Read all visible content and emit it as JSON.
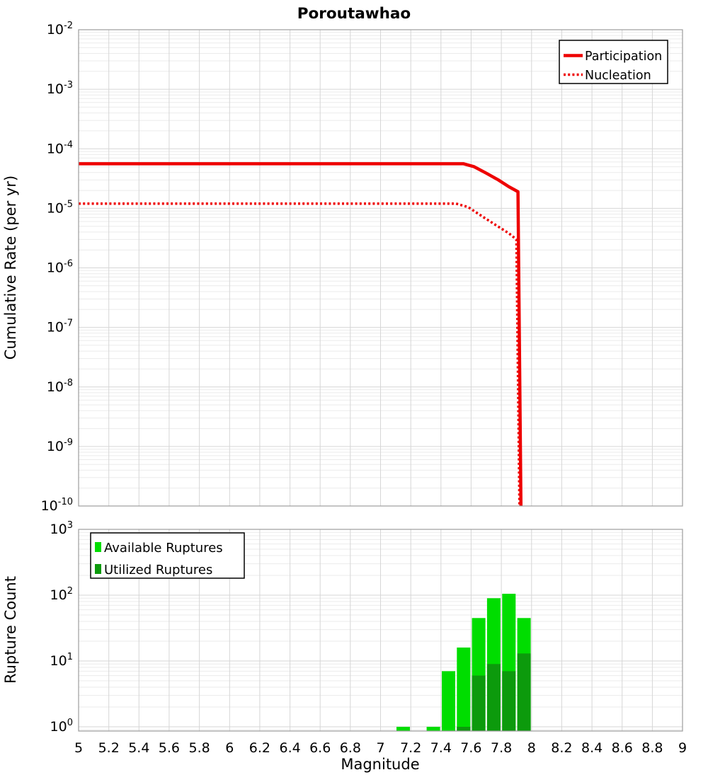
{
  "title": "Poroutawhao",
  "colors": {
    "line_red": "#ee0000",
    "available_green": "#00dd00",
    "utilized_green": "#0c9a0c",
    "grid_major": "#d6d6d6",
    "grid_minor": "#ebebeb",
    "frame": "#9c9c9c",
    "legend_border": "#000000",
    "background": "#ffffff"
  },
  "axes": {
    "x_tick_labels": [
      "5",
      "5.2",
      "5.4",
      "5.6",
      "5.8",
      "6",
      "6.2",
      "6.4",
      "6.6",
      "6.8",
      "7",
      "7.2",
      "7.4",
      "7.6",
      "7.8",
      "8",
      "8.2",
      "8.4",
      "8.6",
      "8.8",
      "9"
    ],
    "upper_y_tick_exponents": [
      -2,
      -3,
      -4,
      -5,
      -6,
      -7,
      -8,
      -9,
      -10
    ],
    "lower_y_tick_exponents": [
      3,
      2,
      1,
      0
    ]
  },
  "chart_data": [
    {
      "type": "line",
      "panel": "upper",
      "title": "Poroutawhao",
      "ylabel": "Cumulative Rate (per yr)",
      "xscale": "linear",
      "yscale": "log",
      "xlim": [
        5,
        9
      ],
      "ylim": [
        1e-10,
        0.01
      ],
      "grid": true,
      "legend_position": "top-right",
      "series": [
        {
          "name": "Participation",
          "style": "solid",
          "color": "#ee0000",
          "points": [
            [
              5.0,
              5.6e-05
            ],
            [
              7.55,
              5.6e-05
            ],
            [
              7.62,
              5e-05
            ],
            [
              7.7,
              3.9e-05
            ],
            [
              7.78,
              3e-05
            ],
            [
              7.85,
              2.3e-05
            ],
            [
              7.91,
              1.9e-05
            ],
            [
              7.93,
              1e-10
            ]
          ]
        },
        {
          "name": "Nucleation",
          "style": "dotted",
          "color": "#ee0000",
          "points": [
            [
              5.0,
              1.2e-05
            ],
            [
              7.5,
              1.2e-05
            ],
            [
              7.58,
              1.05e-05
            ],
            [
              7.65,
              8e-06
            ],
            [
              7.75,
              5.5e-06
            ],
            [
              7.85,
              3.8e-06
            ],
            [
              7.9,
              3e-06
            ],
            [
              7.92,
              1e-10
            ]
          ]
        }
      ]
    },
    {
      "type": "bar",
      "panel": "lower",
      "xlabel": "Magnitude",
      "ylabel": "Rupture Count",
      "xscale": "linear",
      "yscale": "log",
      "xlim": [
        5,
        9
      ],
      "ylim": [
        1,
        1000
      ],
      "grid": true,
      "legend_position": "top-left",
      "bin_width": 0.1,
      "categories": [
        7.15,
        7.35,
        7.45,
        7.55,
        7.65,
        7.75,
        7.85,
        7.95
      ],
      "series": [
        {
          "name": "Available Ruptures",
          "color": "#00dd00",
          "values": [
            1,
            1,
            7,
            16,
            45,
            90,
            105,
            45
          ]
        },
        {
          "name": "Utilized Ruptures",
          "color": "#0c9a0c",
          "values": [
            0,
            0,
            0,
            1,
            6,
            9,
            7,
            13
          ]
        }
      ]
    }
  ]
}
